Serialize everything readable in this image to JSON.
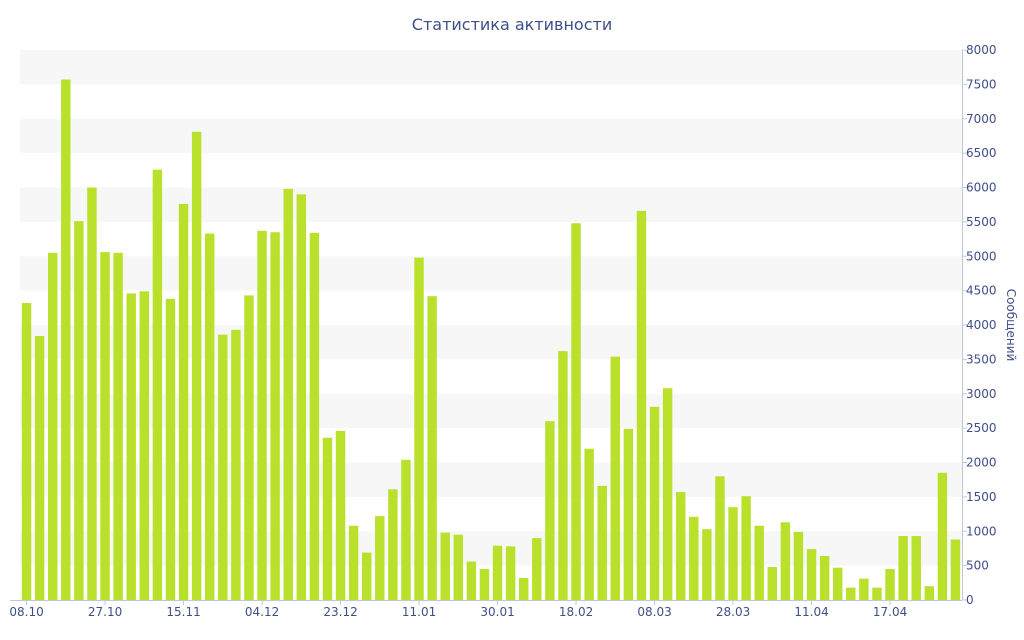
{
  "chart_data": {
    "type": "bar",
    "title": "Статистика активности",
    "xlabel": "",
    "ylabel": "Сообщений",
    "y_axis_side": "right",
    "ylim": [
      0,
      8000
    ],
    "y_ticks": [
      0,
      500,
      1000,
      1500,
      2000,
      2500,
      3000,
      3500,
      4000,
      4500,
      5000,
      5500,
      6000,
      6500,
      7000,
      7500,
      8000
    ],
    "x_tick_labels": [
      "08.10",
      "27.10",
      "15.11",
      "04.12",
      "23.12",
      "11.01",
      "30.01",
      "18.02",
      "08.03",
      "28.03",
      "11.04",
      "17.04"
    ],
    "x_tick_positions": [
      0,
      6,
      12,
      18,
      24,
      30,
      36,
      42,
      48,
      54,
      60,
      66
    ],
    "grid": "alternating horizontal bands",
    "bar_color": "#b9e02a",
    "values": [
      4320,
      3840,
      5050,
      7570,
      5510,
      6000,
      5060,
      5050,
      4460,
      4490,
      6260,
      4380,
      5760,
      6810,
      5330,
      3860,
      3930,
      4430,
      5370,
      5350,
      5980,
      5900,
      5340,
      2360,
      2460,
      1080,
      690,
      1220,
      1610,
      2040,
      4980,
      4420,
      980,
      950,
      560,
      450,
      790,
      780,
      320,
      900,
      2600,
      3620,
      5480,
      2200,
      1660,
      3540,
      2490,
      5660,
      2810,
      3080,
      1570,
      1210,
      1030,
      1800,
      1350,
      1510,
      1080,
      480,
      1130,
      990,
      740,
      640,
      470,
      180,
      310,
      180,
      450,
      930,
      930,
      200,
      1850,
      880
    ]
  }
}
